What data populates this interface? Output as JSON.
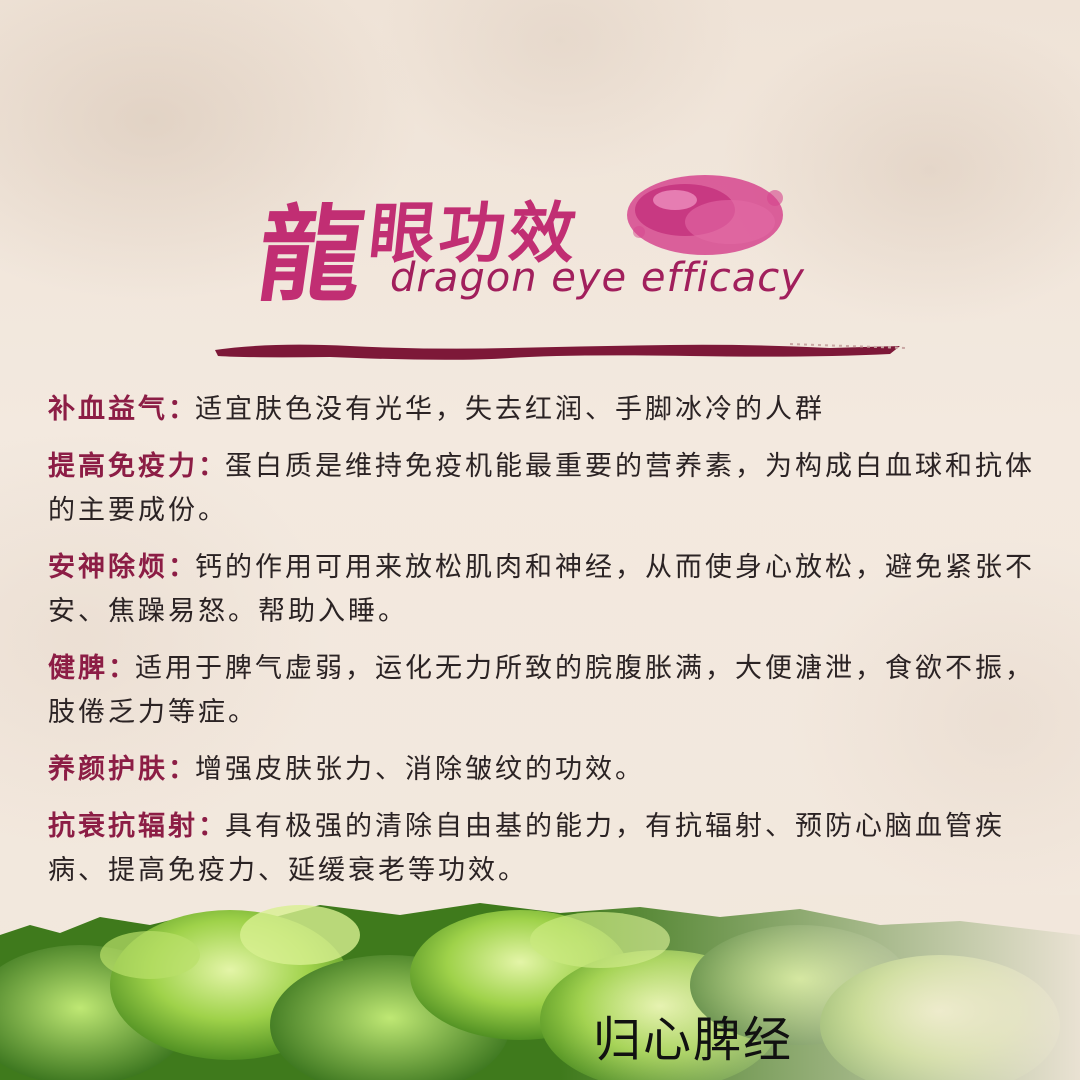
{
  "header": {
    "title_big": "龍",
    "title_small": "眼功效",
    "subtitle": "dragon eye efficacy"
  },
  "items": [
    {
      "title": "补血益气",
      "sep": "：",
      "text": "适宜肤色没有光华，失去红润、手脚冰冷的人群"
    },
    {
      "title": "提高免疫力",
      "sep": "：",
      "text": "蛋白质是维持免疫机能最重要的营养素，为构成白血球和抗体的主要成份。"
    },
    {
      "title": "安神除烦",
      "sep": "：",
      "text": "钙的作用可用来放松肌肉和神经，从而使身心放松，避免紧张不安、焦躁易怒。帮助入睡。"
    },
    {
      "title": "健脾",
      "sep": "：",
      "text": "适用于脾气虚弱，运化无力所致的脘腹胀满，大便溏泄，食欲不振，肢倦乏力等症。"
    },
    {
      "title": "养颜护肤",
      "sep": "：",
      "text": "增强皮肤张力、消除皱纹的功效。"
    },
    {
      "title": "抗衰抗辐射",
      "sep": "：",
      "text": "具有极强的清除自由基的能力，有抗辐射、预防心脑血管疾病、提高免疫力、延缓衰老等功效。"
    }
  ],
  "footer": {
    "text": "归心脾经"
  },
  "colors": {
    "accent": "#c12e73",
    "heading": "#8c1d45",
    "body_text": "#2b2324",
    "background": "#f1e6db",
    "leaf_green": "#7fbf3a"
  }
}
